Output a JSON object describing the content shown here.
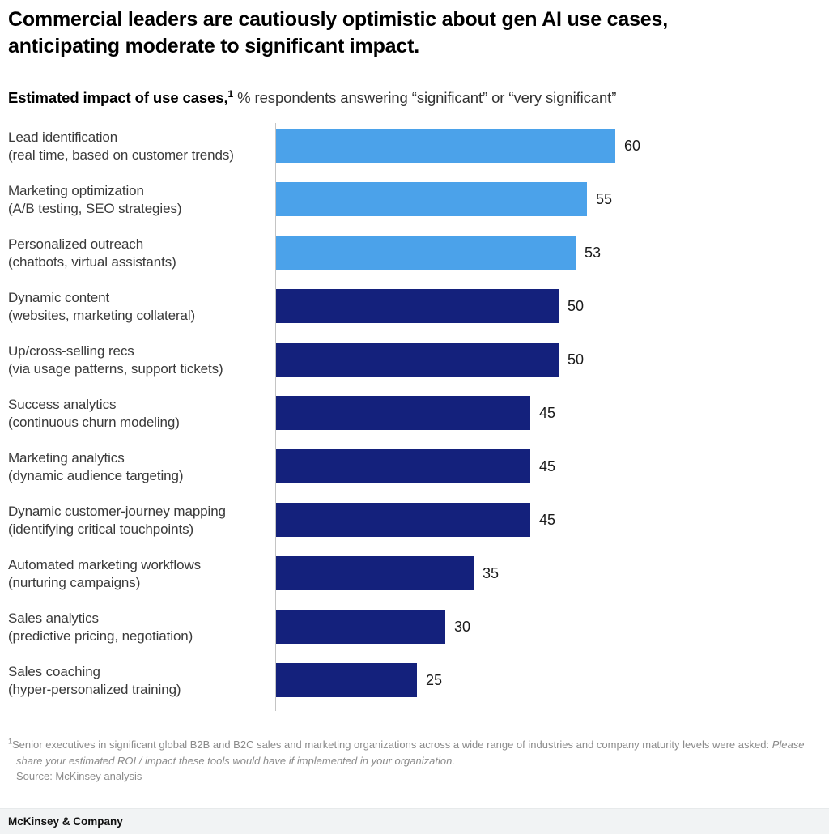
{
  "header": {
    "title": "Commercial leaders are cautiously optimistic about gen AI use cases, anticipating moderate to significant impact.",
    "subtitle_bold": "Estimated impact of use cases,",
    "subtitle_superscript": "1",
    "subtitle_rest": " % respondents answering “significant” or “very significant”"
  },
  "chart_data": {
    "type": "bar",
    "orientation": "horizontal",
    "title": "Estimated impact of use cases, % respondents answering “significant” or “very significant”",
    "xlim": [
      0,
      100
    ],
    "unit": "%",
    "grid": false,
    "legend": false,
    "palette": {
      "light_blue": "#4BA2EA",
      "navy": "#14217C"
    },
    "bars": [
      {
        "label": "Lead identification",
        "sublabel": "(real time, based on customer trends)",
        "value": 60,
        "color": "light_blue"
      },
      {
        "label": "Marketing optimization",
        "sublabel": "(A/B testing, SEO strategies)",
        "value": 55,
        "color": "light_blue"
      },
      {
        "label": "Personalized outreach",
        "sublabel": "(chatbots, virtual assistants)",
        "value": 53,
        "color": "light_blue"
      },
      {
        "label": "Dynamic content",
        "sublabel": "(websites, marketing collateral)",
        "value": 50,
        "color": "navy"
      },
      {
        "label": "Up/cross-selling recs",
        "sublabel": "(via usage patterns, support tickets)",
        "value": 50,
        "color": "navy"
      },
      {
        "label": "Success analytics",
        "sublabel": "(continuous churn modeling)",
        "value": 45,
        "color": "navy"
      },
      {
        "label": "Marketing analytics",
        "sublabel": "(dynamic audience targeting)",
        "value": 45,
        "color": "navy"
      },
      {
        "label": "Dynamic customer-journey mapping",
        "sublabel": "(identifying critical touchpoints)",
        "value": 45,
        "color": "navy"
      },
      {
        "label": "Automated marketing workflows",
        "sublabel": "(nurturing campaigns)",
        "value": 35,
        "color": "navy"
      },
      {
        "label": "Sales analytics",
        "sublabel": "(predictive pricing, negotiation)",
        "value": 30,
        "color": "navy"
      },
      {
        "label": "Sales coaching",
        "sublabel": "(hyper-personalized training)",
        "value": 25,
        "color": "navy"
      }
    ]
  },
  "footnote": {
    "marker": "1",
    "text_regular": "Senior executives in significant global B2B and B2C sales and marketing organizations across a wide range of industries and company maturity levels were asked: ",
    "text_italic": "Please share your estimated ROI / impact these tools would have if implemented in your organization.",
    "source": "Source: McKinsey analysis"
  },
  "footer": {
    "brand": "McKinsey & Company"
  }
}
